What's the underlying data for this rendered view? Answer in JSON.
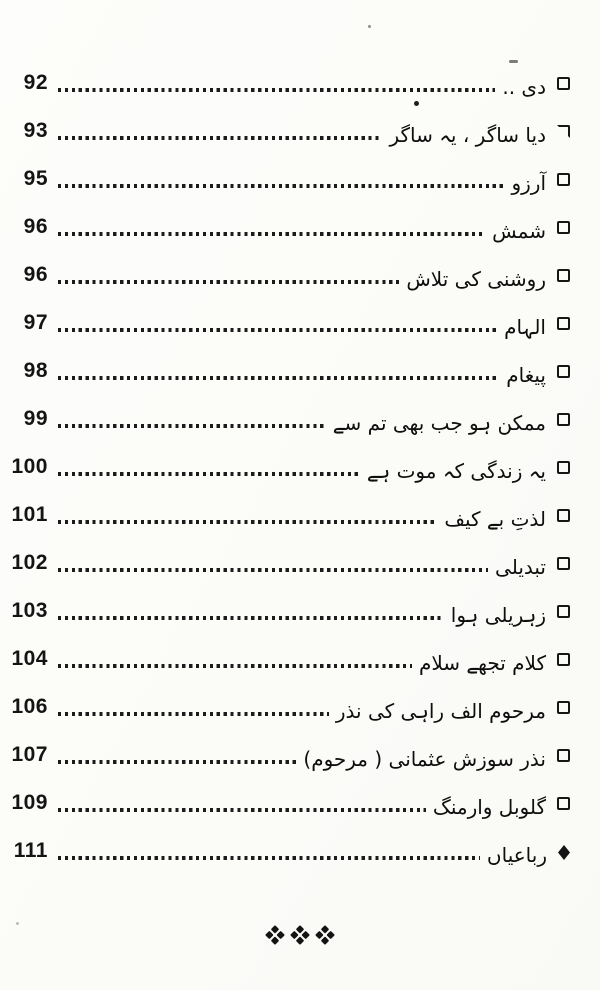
{
  "page": {
    "kind": "table-of-contents scan",
    "paper_color": "#fdfdfb",
    "ink_color": "#161616"
  },
  "toc": {
    "rows": [
      {
        "page_no": "92",
        "title": "دی ..",
        "bullet": "square"
      },
      {
        "page_no": "93",
        "title": "دیا ساگر ، یہ ساگر",
        "bullet": "partial-square"
      },
      {
        "page_no": "95",
        "title": "آرزو",
        "bullet": "square"
      },
      {
        "page_no": "96",
        "title": "شمش",
        "bullet": "square"
      },
      {
        "page_no": "96",
        "title": "روشنی کی تلاش",
        "bullet": "square"
      },
      {
        "page_no": "97",
        "title": "الہام",
        "bullet": "square"
      },
      {
        "page_no": "98",
        "title": "پیغام",
        "bullet": "square"
      },
      {
        "page_no": "99",
        "title": "ممکن ہو جب بھی تم سے",
        "bullet": "square"
      },
      {
        "page_no": "100",
        "title": "یہ زندگی کہ موت ہے",
        "bullet": "square"
      },
      {
        "page_no": "101",
        "title": "لذتِ بے کیف",
        "bullet": "square"
      },
      {
        "page_no": "102",
        "title": "تبدیلی",
        "bullet": "square"
      },
      {
        "page_no": "103",
        "title": "زہریلی ہوا",
        "bullet": "square"
      },
      {
        "page_no": "104",
        "title": "کلام تجھے سلام",
        "bullet": "square"
      },
      {
        "page_no": "106",
        "title": "مرحوم الف راہی کی نذر",
        "bullet": "square"
      },
      {
        "page_no": "107",
        "title": "نذر سوزش عثمانی ( مرحوم)",
        "bullet": "square"
      },
      {
        "page_no": "109",
        "title": "گلوبل وارمنگ",
        "bullet": "square"
      },
      {
        "page_no": "111",
        "title": "رباعیاں",
        "bullet": "diamond"
      }
    ],
    "ornament_icon": "three-quad-diamonds"
  }
}
